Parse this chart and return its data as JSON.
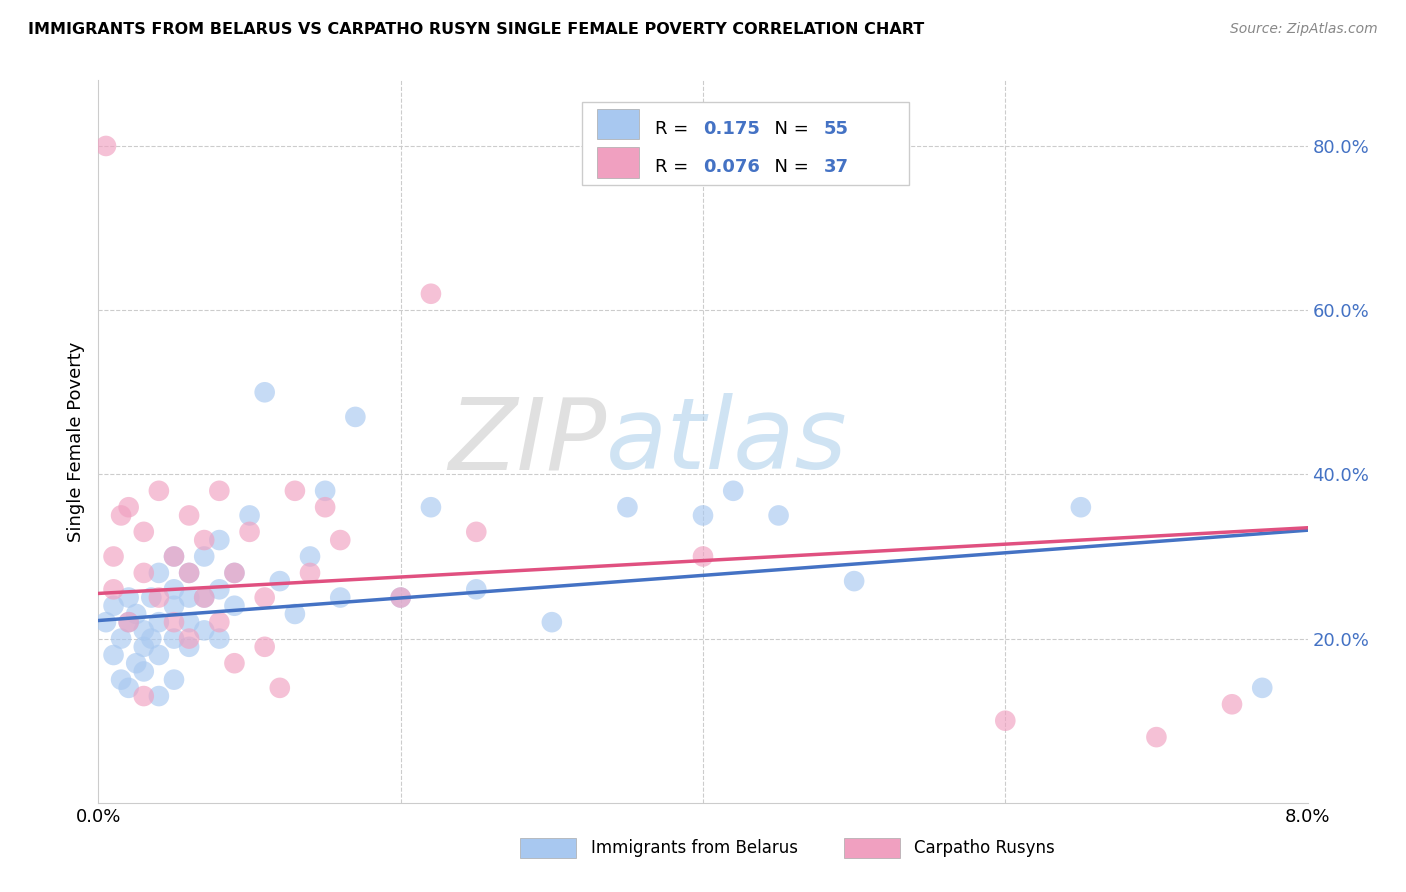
{
  "title": "IMMIGRANTS FROM BELARUS VS CARPATHO RUSYN SINGLE FEMALE POVERTY CORRELATION CHART",
  "source": "Source: ZipAtlas.com",
  "ylabel": "Single Female Poverty",
  "xmin": 0.0,
  "xmax": 0.08,
  "ymin": 0.0,
  "ymax": 0.88,
  "legend1_R": "0.175",
  "legend1_N": "55",
  "legend2_R": "0.076",
  "legend2_N": "37",
  "color_blue": "#A8C8F0",
  "color_pink": "#F0A0C0",
  "line_blue": "#4472C4",
  "line_pink": "#E05080",
  "watermark_zip": "ZIP",
  "watermark_atlas": "atlas",
  "belarus_x": [
    0.0005,
    0.001,
    0.001,
    0.0015,
    0.0015,
    0.002,
    0.002,
    0.002,
    0.0025,
    0.0025,
    0.003,
    0.003,
    0.003,
    0.0035,
    0.0035,
    0.004,
    0.004,
    0.004,
    0.004,
    0.005,
    0.005,
    0.005,
    0.005,
    0.005,
    0.006,
    0.006,
    0.006,
    0.006,
    0.007,
    0.007,
    0.007,
    0.008,
    0.008,
    0.008,
    0.009,
    0.009,
    0.01,
    0.011,
    0.012,
    0.013,
    0.014,
    0.015,
    0.016,
    0.017,
    0.02,
    0.022,
    0.025,
    0.03,
    0.035,
    0.04,
    0.042,
    0.045,
    0.05,
    0.065,
    0.077
  ],
  "belarus_y": [
    0.22,
    0.18,
    0.24,
    0.15,
    0.2,
    0.14,
    0.22,
    0.25,
    0.17,
    0.23,
    0.19,
    0.21,
    0.16,
    0.2,
    0.25,
    0.18,
    0.22,
    0.28,
    0.13,
    0.15,
    0.2,
    0.24,
    0.26,
    0.3,
    0.19,
    0.22,
    0.25,
    0.28,
    0.21,
    0.25,
    0.3,
    0.2,
    0.26,
    0.32,
    0.24,
    0.28,
    0.35,
    0.5,
    0.27,
    0.23,
    0.3,
    0.38,
    0.25,
    0.47,
    0.25,
    0.36,
    0.26,
    0.22,
    0.36,
    0.35,
    0.38,
    0.35,
    0.27,
    0.36,
    0.14
  ],
  "rusyn_x": [
    0.0005,
    0.001,
    0.001,
    0.0015,
    0.002,
    0.002,
    0.003,
    0.003,
    0.003,
    0.004,
    0.004,
    0.005,
    0.005,
    0.006,
    0.006,
    0.006,
    0.007,
    0.007,
    0.008,
    0.008,
    0.009,
    0.009,
    0.01,
    0.011,
    0.011,
    0.012,
    0.013,
    0.014,
    0.015,
    0.016,
    0.02,
    0.022,
    0.025,
    0.04,
    0.06,
    0.07,
    0.075
  ],
  "rusyn_y": [
    0.8,
    0.26,
    0.3,
    0.35,
    0.22,
    0.36,
    0.28,
    0.33,
    0.13,
    0.38,
    0.25,
    0.22,
    0.3,
    0.28,
    0.35,
    0.2,
    0.25,
    0.32,
    0.22,
    0.38,
    0.28,
    0.17,
    0.33,
    0.25,
    0.19,
    0.14,
    0.38,
    0.28,
    0.36,
    0.32,
    0.25,
    0.62,
    0.33,
    0.3,
    0.1,
    0.08,
    0.12
  ]
}
